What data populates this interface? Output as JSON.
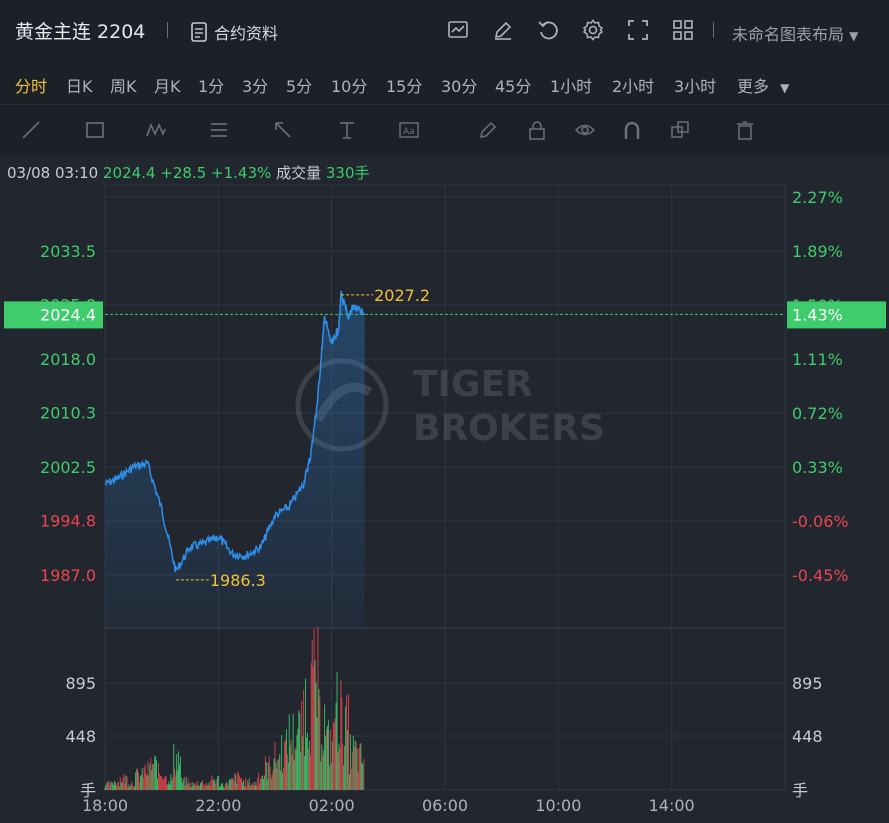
{
  "header": {
    "title": "黄金主连 2204",
    "contract_label": "合约资料",
    "layout_label": "未命名图表布局"
  },
  "periods": [
    "分时",
    "日K",
    "周K",
    "月K",
    "1分",
    "3分",
    "5分",
    "10分",
    "15分",
    "30分",
    "45分",
    "1小时",
    "2小时",
    "3小时",
    "更多"
  ],
  "active_period": "分时",
  "info": {
    "datetime": "03/08 03:10",
    "price": "2024.4",
    "change": "+28.5",
    "change_pct": "+1.43%",
    "volume_label": "成交量",
    "volume": "330手"
  },
  "colors": {
    "up": "#3ecc6c",
    "down": "#e8454f",
    "line": "#2f8ee8",
    "marker": "#f2c237",
    "active": "#f2c237"
  },
  "watermark": {
    "line1": "TIGER",
    "line2": "BROKERS"
  },
  "chart_data": {
    "type": "line",
    "y_left_ticks": [
      "2033.5",
      "2025.8",
      "2018.0",
      "2010.3",
      "2002.5",
      "1994.8",
      "1987.0"
    ],
    "y_right_ticks": [
      "2.27%",
      "1.89%",
      "1.50%",
      "1.11%",
      "0.72%",
      "0.33%",
      "-0.06%",
      "-0.45%"
    ],
    "x_ticks": [
      "18:00",
      "22:00",
      "02:00",
      "06:00",
      "10:00",
      "14:00"
    ],
    "current_price": "2024.4",
    "current_pct": "1.43%",
    "high": {
      "value": 2027.2,
      "label": "2027.2",
      "time": "02:20"
    },
    "low": {
      "value": 1986.3,
      "label": "1986.3",
      "time": "20:30"
    },
    "series": [
      {
        "x": [
          "18:00",
          "18:30",
          "19:00",
          "19:30",
          "20:00",
          "20:30",
          "21:00",
          "21:30",
          "22:00",
          "22:30",
          "23:00",
          "23:30",
          "00:00",
          "00:30",
          "01:00",
          "01:15",
          "01:30",
          "01:45",
          "02:00",
          "02:15",
          "02:20",
          "02:35",
          "02:45",
          "03:10"
        ],
        "values": [
          2000.0,
          2001.0,
          2002.5,
          2003.0,
          1996.5,
          1987.5,
          1991.0,
          1991.5,
          1992.5,
          1990.0,
          1989.8,
          1991.0,
          1995.5,
          1996.8,
          2000.0,
          2004.0,
          2012.0,
          2024.0,
          2020.0,
          2022.5,
          2027.2,
          2024.0,
          2025.5,
          2024.4
        ]
      }
    ],
    "volume": {
      "ticks": [
        "895",
        "448"
      ],
      "unit": "手",
      "bars": [
        60,
        90,
        120,
        80,
        150,
        200,
        260,
        180,
        120,
        330,
        90,
        60,
        80,
        70,
        110,
        60,
        90,
        130,
        80,
        70,
        160,
        240,
        330,
        420,
        560,
        600,
        900,
        1100,
        700,
        500,
        850,
        650,
        400,
        330
      ]
    }
  }
}
